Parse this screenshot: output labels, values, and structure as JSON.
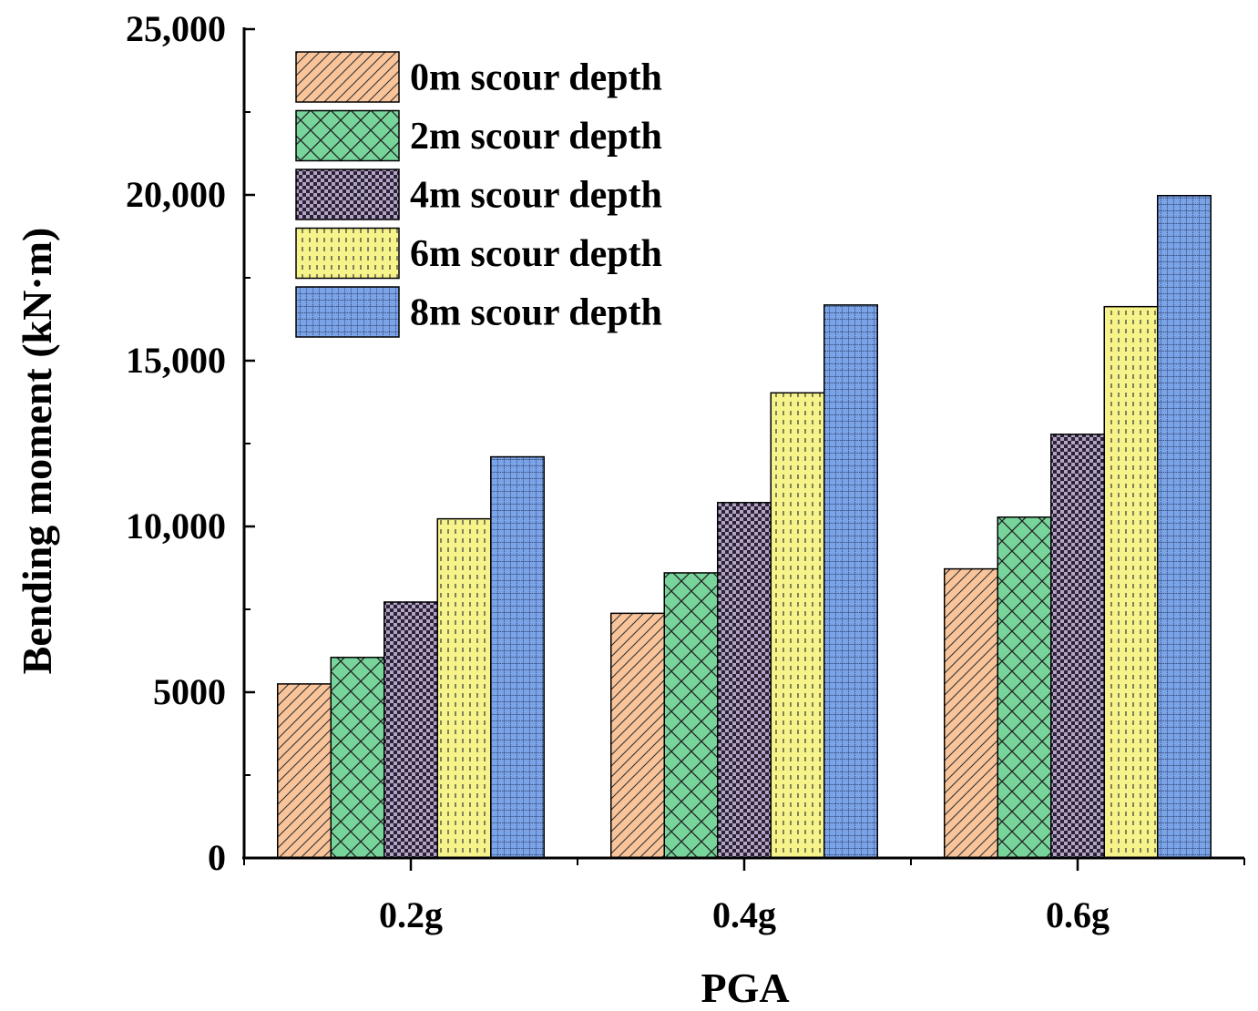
{
  "chart_data": {
    "type": "bar",
    "title": "",
    "xlabel": "PGA",
    "ylabel": "Bending moment (kN·m)",
    "categories": [
      "0.2g",
      "0.4g",
      "0.6g"
    ],
    "ylim": [
      0,
      25000
    ],
    "yticks": [
      0,
      5000,
      10000,
      15000,
      20000,
      25000
    ],
    "ytick_labels": [
      "0",
      "5000",
      "10,000",
      "15,000",
      "20,000",
      "25,000"
    ],
    "legend_position": "top-left",
    "series": [
      {
        "name": "0m scour depth",
        "values": [
          5250,
          7380,
          8720
        ],
        "color": "#f9c49a",
        "pattern": "diagonal-hatch"
      },
      {
        "name": "2m scour depth",
        "values": [
          6050,
          8600,
          10280
        ],
        "color": "#77d49a",
        "pattern": "crosshatch"
      },
      {
        "name": "4m scour depth",
        "values": [
          7720,
          10720,
          12780
        ],
        "color": "#b4a2c8",
        "pattern": "checker"
      },
      {
        "name": "6m scour depth",
        "values": [
          10230,
          14030,
          16630
        ],
        "color": "#f6f38a",
        "pattern": "dashed-vertical"
      },
      {
        "name": "8m scour depth",
        "values": [
          12100,
          16680,
          19980
        ],
        "color": "#7aa3e8",
        "pattern": "grid"
      }
    ]
  }
}
